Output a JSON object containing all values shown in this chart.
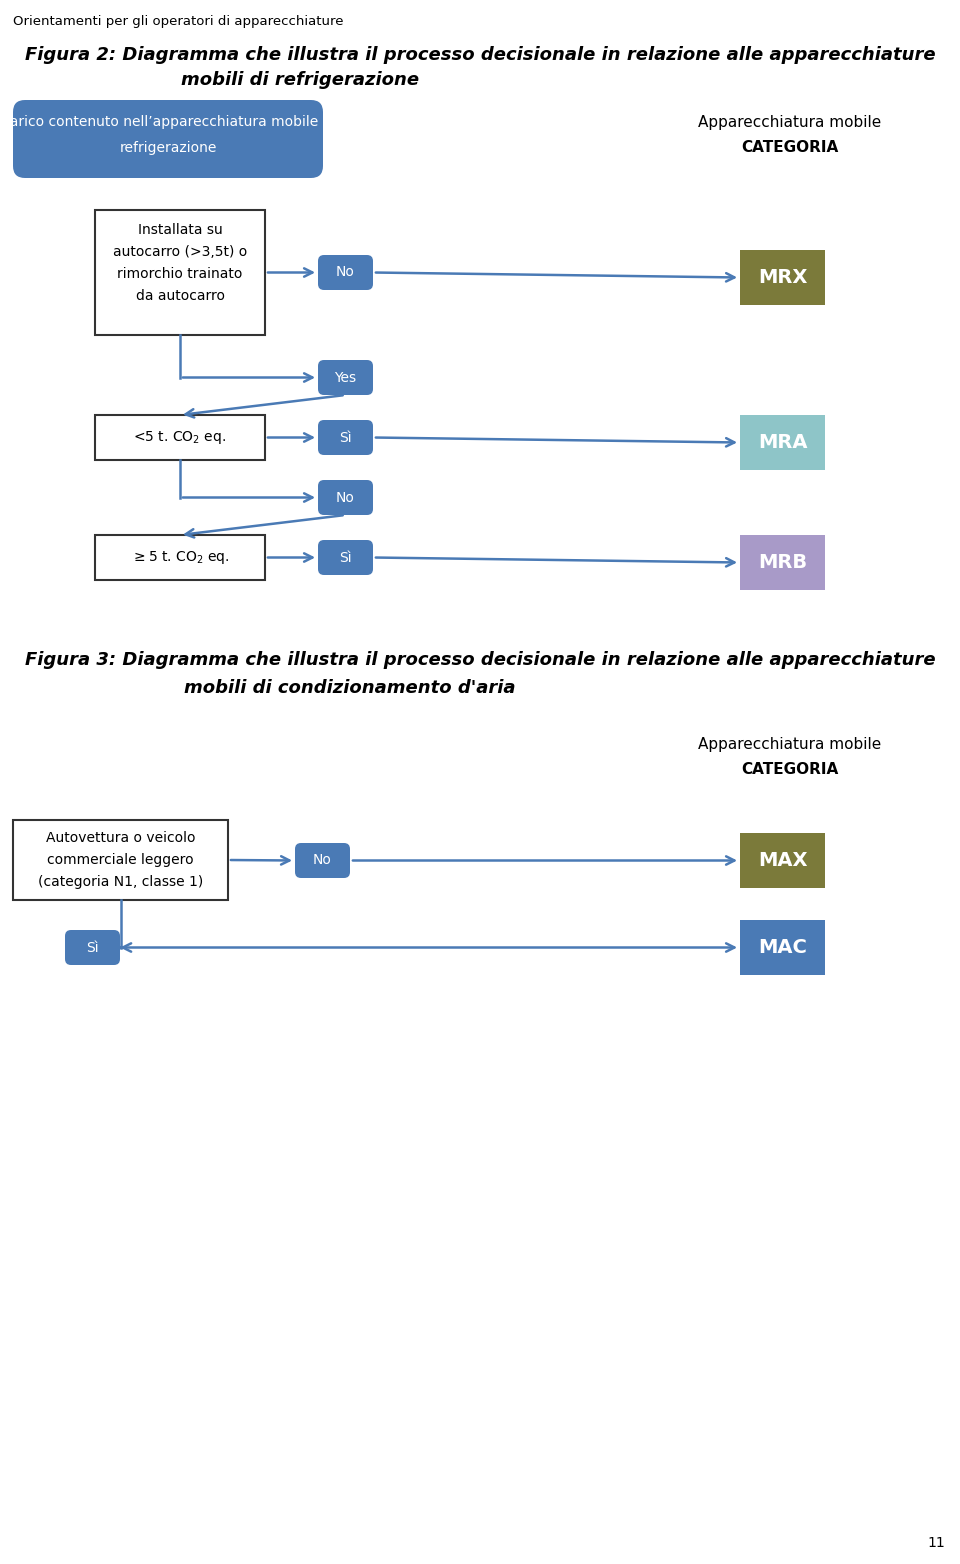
{
  "page_header": "Orientamenti per gli operatori di apparecchiature",
  "fig2_title_line1": "Figura 2: Diagramma che illustra il processo decisionale in relazione alle apparecchiature",
  "fig2_title_line2": "mobili di refrigerazione",
  "fig3_title_line1": "Figura 3: Diagramma che illustra il processo decisionale in relazione alle apparecchiature",
  "fig3_title_line2": "mobili di condizionamento d'aria",
  "categoria_label_line1": "Apparecchiatura mobile",
  "categoria_label_line2": "CATEGORIA",
  "box_blue_fill": "#4a7ab5",
  "box_outline_fill": "#ffffff",
  "box_outline_edge": "#333333",
  "mrx_fill": "#7b7a3a",
  "mra_fill": "#8ec5c8",
  "mrb_fill": "#a89ac8",
  "max_fill": "#7b7a3a",
  "mac_fill": "#4a7ab5",
  "arrow_color": "#4a7ab5",
  "page_number": "11",
  "background": "#ffffff"
}
